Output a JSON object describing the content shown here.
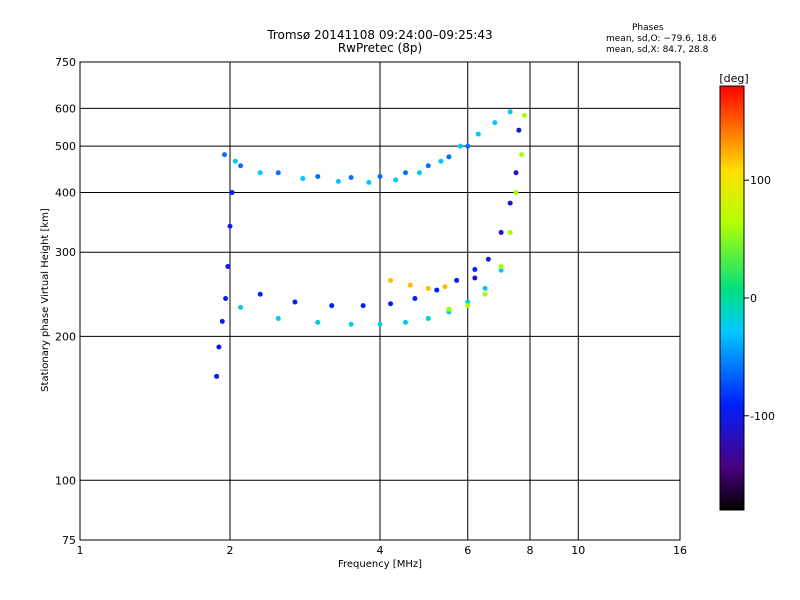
{
  "chart_data": {
    "type": "scatter",
    "title": "Tromsø 20141108 09:24:00–09:25:43",
    "subtitle": "RwPretec (8p)",
    "xlabel": "Frequency [MHz]",
    "ylabel": "Stationary phase Virtual Height [km]",
    "xscale": "log",
    "yscale": "log",
    "xlim": [
      1,
      16
    ],
    "ylim": [
      75,
      750
    ],
    "xticks": [
      1,
      2,
      4,
      6,
      8,
      10,
      16
    ],
    "xtick_labels": [
      "1",
      "2",
      "4",
      "6",
      "8",
      "10",
      "16"
    ],
    "yticks": [
      75,
      100,
      200,
      300,
      400,
      500,
      600,
      750
    ],
    "ytick_labels": [
      "75",
      "100",
      "200",
      "300",
      "400",
      "500",
      "600",
      "750"
    ],
    "grid": true,
    "colorbar": {
      "label": "[deg]",
      "range": [
        -180,
        180
      ],
      "ticks": [
        100,
        0,
        -100
      ],
      "tick_labels": [
        "100",
        "0",
        "-100"
      ]
    },
    "stats_heading": "Phases",
    "stats": [
      "mean, sd,O: −79.6, 18.6",
      "mean, sd,X:  84.7, 28.8"
    ],
    "traces": [
      {
        "freq": [
          1.95,
          2.1,
          2.5,
          3.0,
          3.5,
          4.0,
          4.5,
          5.0,
          5.5,
          6.0
        ],
        "height": [
          480,
          455,
          440,
          432,
          430,
          432,
          440,
          455,
          475,
          500
        ],
        "phase": -60
      },
      {
        "freq": [
          2.05,
          2.3,
          2.8,
          3.3,
          3.8,
          4.3,
          4.8,
          5.3,
          5.8,
          6.3,
          6.8,
          7.3
        ],
        "height": [
          465,
          440,
          428,
          422,
          420,
          425,
          440,
          465,
          500,
          530,
          560,
          590
        ],
        "phase": -30
      },
      {
        "freq": [
          2.1,
          2.5,
          3.0,
          3.5,
          4.0,
          4.5,
          5.0,
          5.5,
          6.0,
          6.5,
          7.0
        ],
        "height": [
          230,
          218,
          214,
          212,
          212,
          214,
          218,
          225,
          236,
          252,
          275
        ],
        "phase": -20
      },
      {
        "freq": [
          2.3,
          2.7,
          3.2,
          3.7,
          4.2,
          4.7,
          5.2,
          5.7,
          6.2
        ],
        "height": [
          245,
          236,
          232,
          232,
          234,
          240,
          250,
          262,
          276
        ],
        "phase": -90
      },
      {
        "freq": [
          4.2,
          4.6,
          5.0,
          5.4
        ],
        "height": [
          262,
          256,
          252,
          254
        ],
        "phase": 120
      },
      {
        "freq": [
          5.5,
          6.0,
          6.5,
          7.0,
          7.3,
          7.5,
          7.7,
          7.8
        ],
        "height": [
          228,
          232,
          245,
          280,
          330,
          400,
          480,
          580
        ],
        "phase": 60
      },
      {
        "freq": [
          6.2,
          6.6,
          7.0,
          7.3,
          7.5,
          7.6
        ],
        "height": [
          265,
          290,
          330,
          380,
          440,
          540
        ],
        "phase": -110
      },
      {
        "freq": [
          1.88,
          1.9,
          1.93,
          1.96,
          1.98,
          2.0,
          2.02
        ],
        "height": [
          165,
          190,
          215,
          240,
          280,
          340,
          400
        ],
        "phase": -100
      }
    ]
  }
}
